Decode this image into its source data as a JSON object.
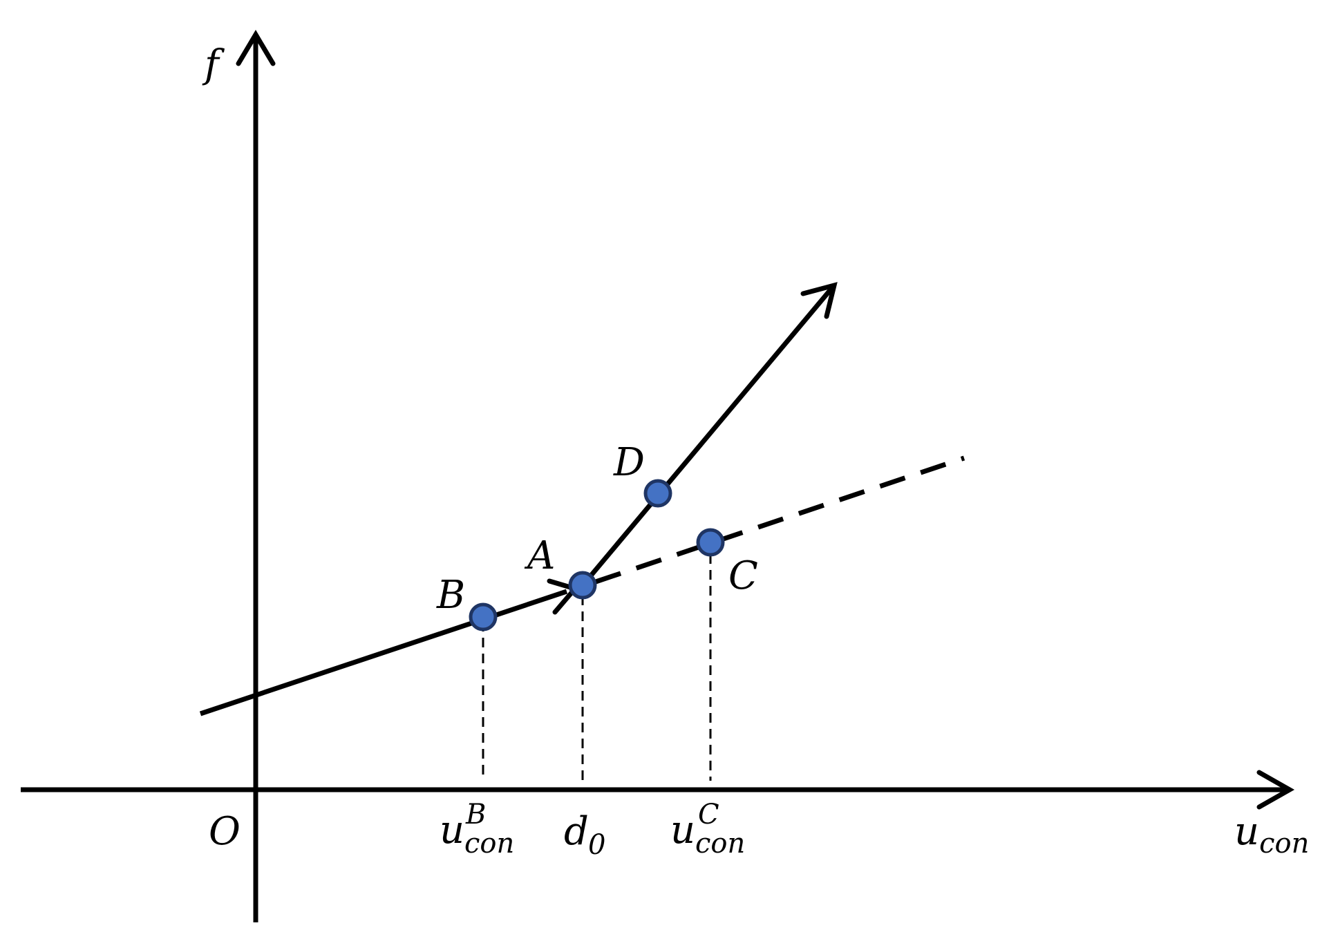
{
  "labels": {
    "y_axis": "f",
    "x_axis_main": "u",
    "x_axis_sub": "con",
    "origin": "O",
    "B": "B",
    "A": "A",
    "C": "C",
    "D": "D",
    "tick_b_main": "u",
    "tick_b_sub": "con",
    "tick_b_sup": "B",
    "tick_d0_main": "d",
    "tick_d0_sub": "0",
    "tick_c_main": "u",
    "tick_c_sub": "con",
    "tick_c_sup": "C"
  },
  "colors": {
    "point_fill": "#4472c4",
    "point_stroke": "#1f3564",
    "line": "#000000"
  }
}
